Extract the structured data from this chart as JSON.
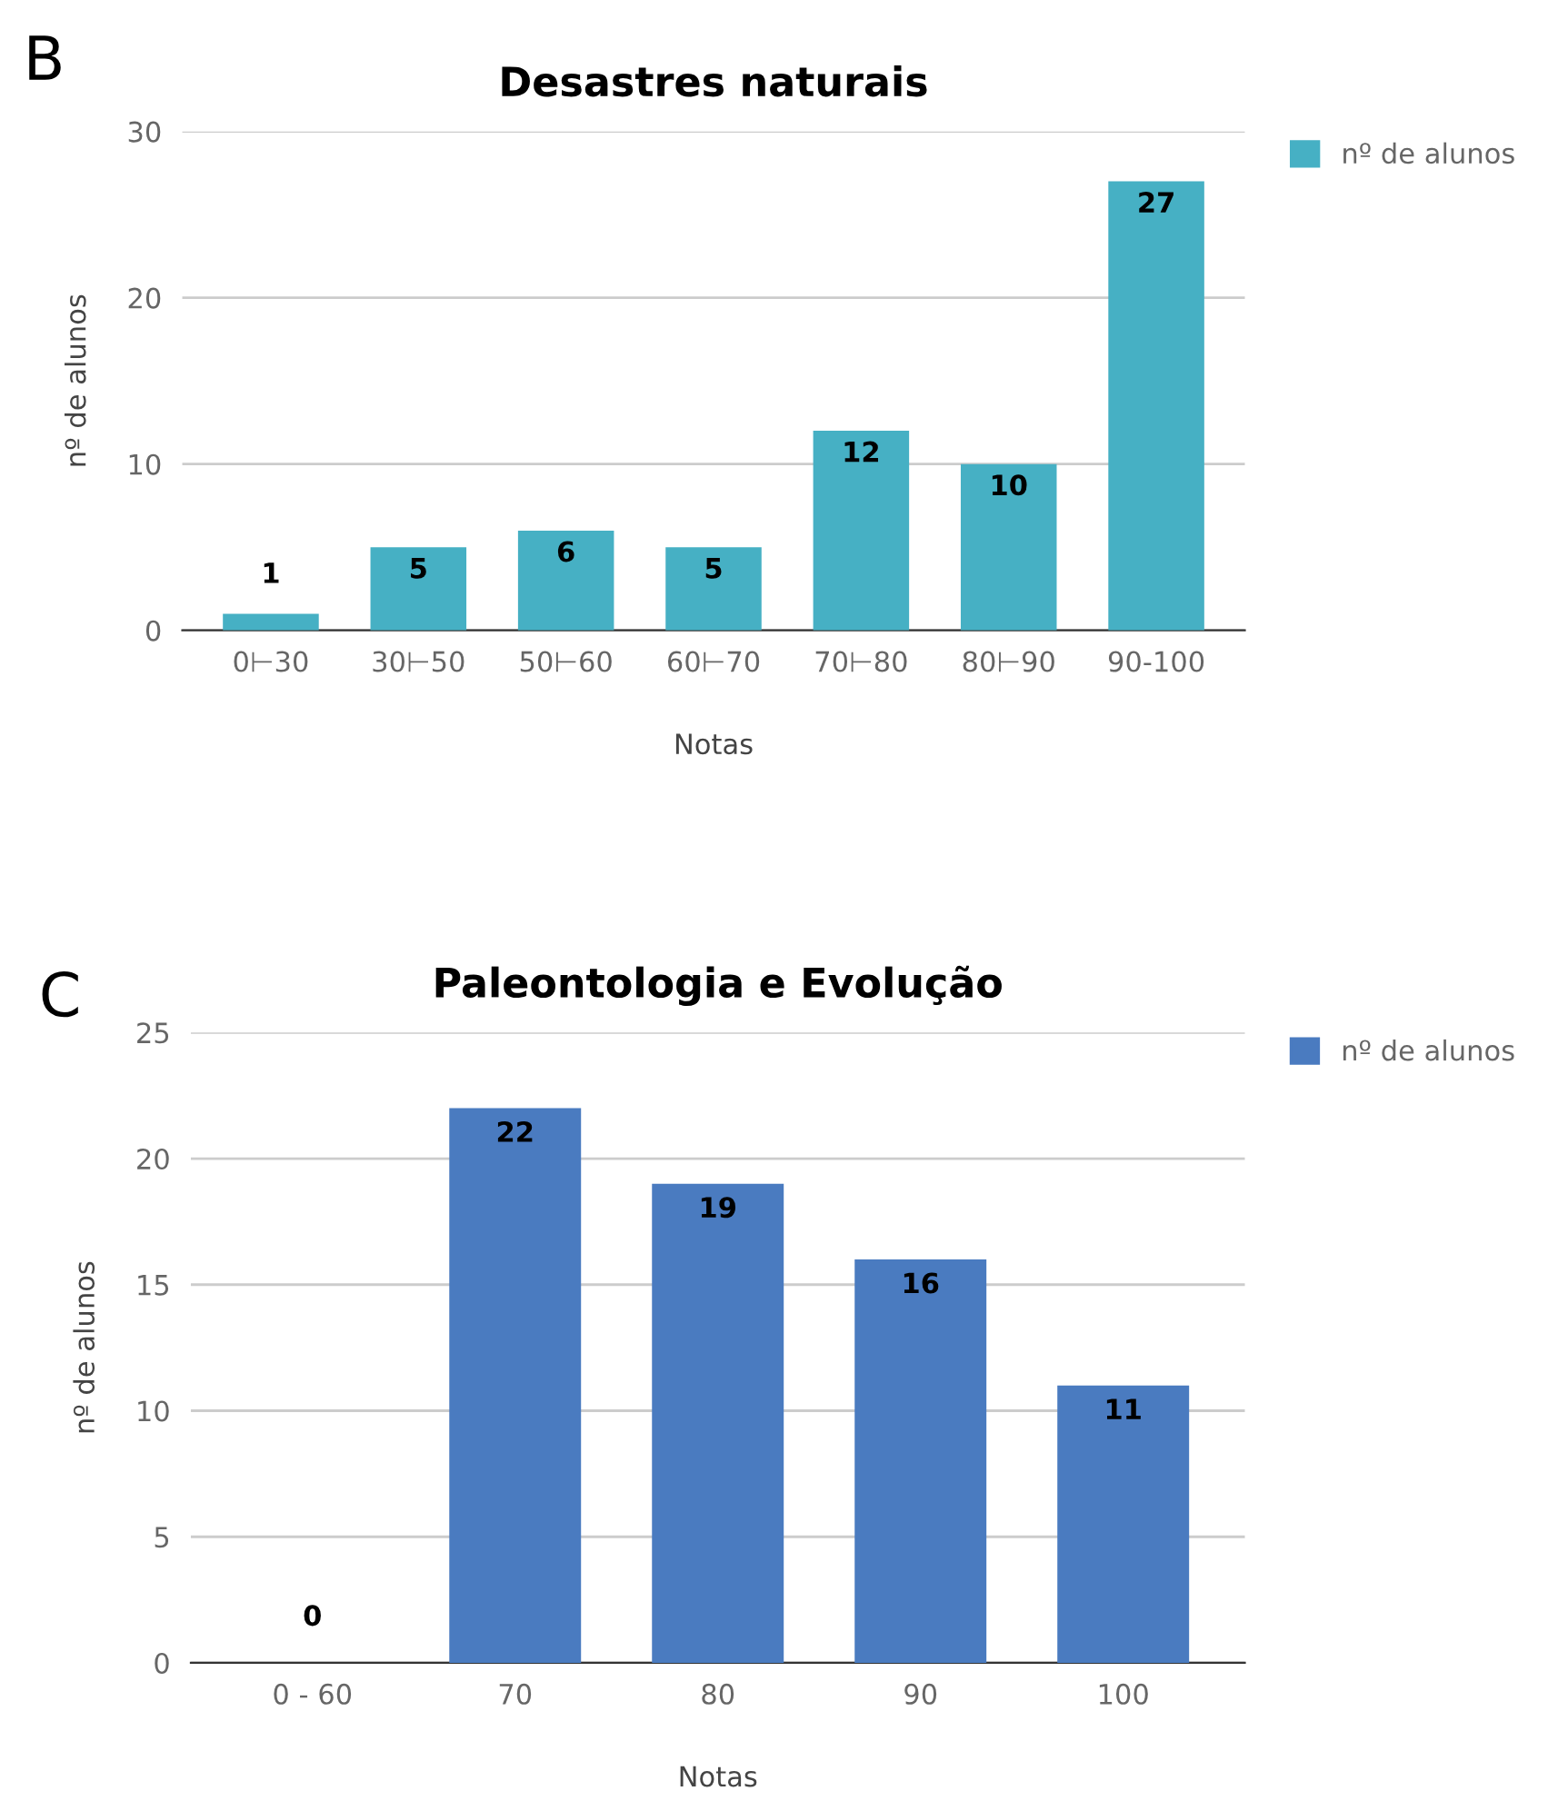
{
  "chart_data": [
    {
      "type": "bar",
      "title": "Desastres naturais",
      "xlabel": "Notas",
      "ylabel": "nº de alunos",
      "annotations": [
        "B"
      ],
      "categories": [
        "0⊢30",
        "30⊢50",
        "50⊢60",
        "60⊢70",
        "70⊢80",
        "80⊢90",
        "90-100"
      ],
      "series": [
        {
          "name": "nº de alunos",
          "color": "#46b0c4",
          "values": [
            1,
            5,
            6,
            5,
            12,
            10,
            27
          ]
        }
      ],
      "ylim": [
        0,
        30
      ],
      "yticks": [
        0,
        10,
        20,
        30
      ],
      "grid": "y",
      "legend": "top right",
      "data_labels": true
    },
    {
      "type": "bar",
      "title": "Paleontologia e Evolução",
      "xlabel": "Notas",
      "ylabel": "nº de alunos",
      "annotations": [
        "C"
      ],
      "categories": [
        "0 - 60",
        "70",
        "80",
        "90",
        "100"
      ],
      "series": [
        {
          "name": "nº de alunos",
          "color": "#4a7bc0",
          "values": [
            0,
            22,
            19,
            16,
            11
          ]
        }
      ],
      "ylim": [
        0,
        25
      ],
      "yticks": [
        0,
        5,
        10,
        15,
        20,
        25
      ],
      "grid": "y",
      "legend": "top right",
      "data_labels": true
    }
  ]
}
